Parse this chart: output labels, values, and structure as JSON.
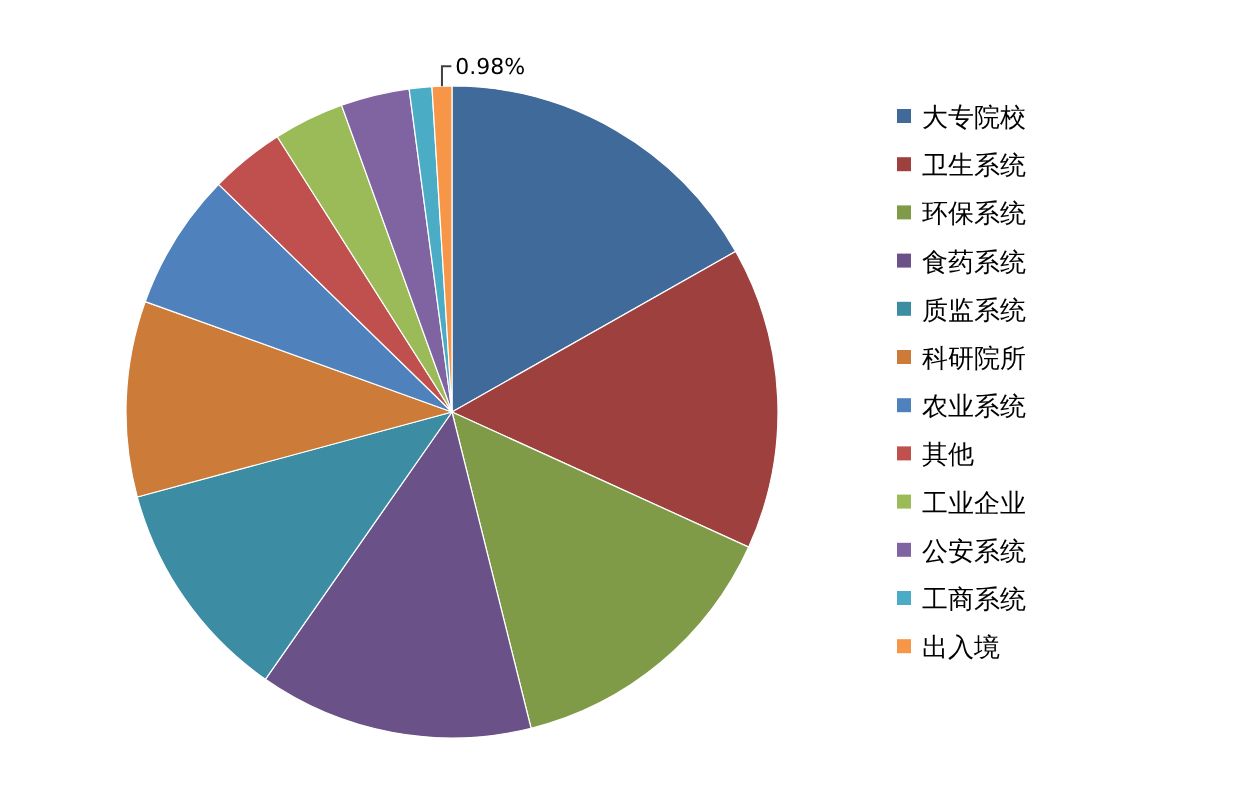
{
  "chart_data": {
    "type": "pie",
    "categories": [
      "大专院校",
      "卫生系统",
      "环保系统",
      "食药系统",
      "质监系统",
      "科研院所",
      "农业系统",
      "其他",
      "工业企业",
      "公安系统",
      "工商系统",
      "出入境"
    ],
    "values": [
      16.8,
      15.0,
      14.3,
      13.6,
      11.1,
      9.7,
      6.8,
      3.7,
      3.5,
      3.4,
      1.12,
      0.98
    ],
    "colors": [
      "#3f6a9a",
      "#9e413e",
      "#809b48",
      "#6a5187",
      "#3c8da3",
      "#cc7b38",
      "#4f81bd",
      "#c0504d",
      "#9bbb59",
      "#8064a2",
      "#4bacc6",
      "#f79646"
    ],
    "value_labels": [
      null,
      null,
      null,
      null,
      null,
      null,
      null,
      null,
      null,
      null,
      null,
      "0.98%"
    ],
    "legend": "right"
  }
}
